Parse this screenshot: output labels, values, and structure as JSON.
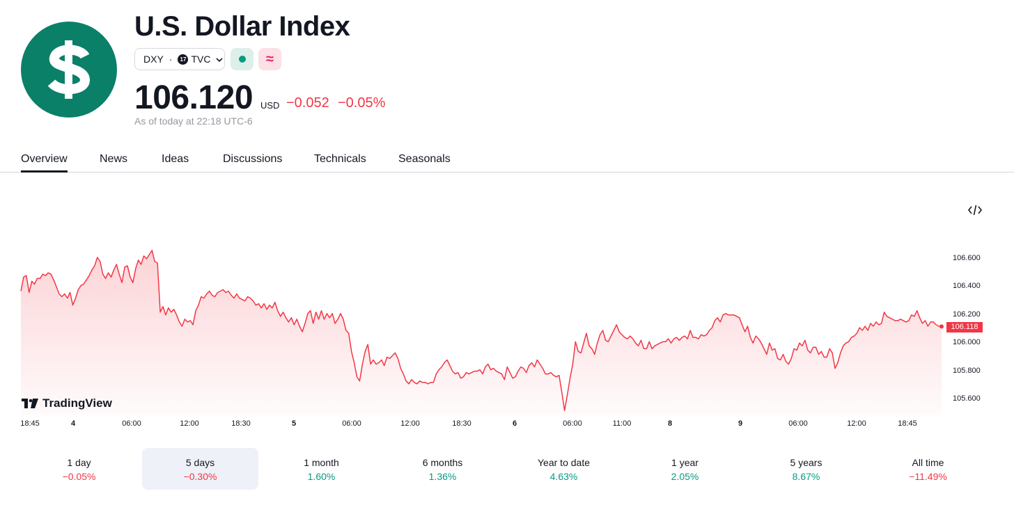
{
  "header": {
    "title": "U.S. Dollar Index",
    "symbol": "DXY",
    "separator": "·",
    "exchange": "TVC",
    "exchange_logo_text": "17",
    "logo_icon": "dollar-sign-icon",
    "status_icon": "market-open-dot-icon",
    "delay_icon": "delayed-data-icon",
    "delay_glyph": "≈",
    "price": "106.120",
    "currency": "USD",
    "change": "−0.052",
    "change_percent": "−0.05%",
    "as_of": "As of today at 22:18 UTC-6",
    "colors": {
      "brand": "#0a8068",
      "negative": "#f23645",
      "positive": "#089981"
    }
  },
  "tabs": [
    {
      "label": "Overview",
      "active": true
    },
    {
      "label": "News"
    },
    {
      "label": "Ideas"
    },
    {
      "label": "Discussions"
    },
    {
      "label": "Technicals"
    },
    {
      "label": "Seasonals"
    }
  ],
  "chart": {
    "watermark": "TradingView",
    "embed_icon": "code-embed-icon",
    "last_value_label": "106.118"
  },
  "chart_data": {
    "type": "area",
    "y_ticks": [
      "106.600",
      "106.400",
      "106.200",
      "106.000",
      "105.800",
      "105.600"
    ],
    "ylim": [
      105.5,
      106.72
    ],
    "x_ticks": [
      "18:45",
      "4",
      "06:00",
      "12:00",
      "18:30",
      "5",
      "06:00",
      "12:00",
      "18:30",
      "6",
      "06:00",
      "11:00",
      "8",
      "9",
      "06:00",
      "12:00",
      "18:45"
    ],
    "bold_ticks": [
      "4",
      "5",
      "6",
      "8",
      "9"
    ],
    "line_color": "#f23645",
    "last_value": 106.118,
    "series": [
      {
        "values": [
          106.37,
          106.47,
          106.48,
          106.36,
          106.44,
          106.42,
          106.46,
          106.46,
          106.49,
          106.48,
          106.5,
          106.49,
          106.45,
          106.4,
          106.35,
          106.33,
          106.35,
          106.32,
          106.36,
          106.27,
          106.32,
          106.38,
          106.41,
          106.42,
          106.45,
          106.48,
          106.52,
          106.55,
          106.61,
          106.58,
          106.49,
          106.46,
          106.5,
          106.47,
          106.52,
          106.56,
          106.49,
          106.43,
          106.54,
          106.55,
          106.47,
          106.43,
          106.53,
          106.59,
          106.56,
          106.62,
          106.6,
          106.63,
          106.66,
          106.58,
          106.57,
          106.22,
          106.26,
          106.2,
          106.25,
          106.22,
          106.24,
          106.2,
          106.15,
          106.12,
          106.17,
          106.15,
          106.16,
          106.13,
          106.23,
          106.27,
          106.33,
          106.32,
          106.35,
          106.37,
          106.34,
          106.33,
          106.36,
          106.37,
          106.38,
          106.36,
          106.37,
          106.34,
          106.32,
          106.35,
          106.32,
          106.31,
          106.3,
          106.33,
          106.32,
          106.3,
          106.27,
          106.28,
          106.25,
          106.28,
          106.24,
          106.27,
          106.25,
          106.29,
          106.23,
          106.19,
          106.22,
          106.18,
          106.15,
          106.18,
          106.13,
          106.17,
          106.12,
          106.08,
          106.14,
          106.21,
          106.23,
          106.14,
          106.22,
          106.17,
          106.23,
          106.17,
          106.21,
          106.18,
          106.21,
          106.14,
          106.17,
          106.21,
          106.17,
          106.09,
          106.07,
          105.94,
          105.86,
          105.76,
          105.73,
          105.85,
          105.94,
          105.99,
          105.85,
          105.88,
          105.85,
          105.86,
          105.88,
          105.84,
          105.9,
          105.89,
          105.91,
          105.93,
          105.89,
          105.82,
          105.78,
          105.73,
          105.71,
          105.74,
          105.72,
          105.71,
          105.73,
          105.72,
          105.72,
          105.71,
          105.72,
          105.72,
          105.78,
          105.81,
          105.83,
          105.86,
          105.88,
          105.84,
          105.8,
          105.78,
          105.79,
          105.75,
          105.76,
          105.79,
          105.78,
          105.79,
          105.8,
          105.8,
          105.81,
          105.78,
          105.83,
          105.85,
          105.81,
          105.82,
          105.8,
          105.79,
          105.78,
          105.74,
          105.83,
          105.79,
          105.75,
          105.76,
          105.8,
          105.83,
          105.82,
          105.79,
          105.84,
          105.86,
          105.83,
          105.88,
          105.85,
          105.82,
          105.78,
          105.78,
          105.79,
          105.77,
          105.76,
          105.77,
          105.65,
          105.52,
          105.63,
          105.75,
          105.85,
          106.01,
          105.94,
          105.93,
          106.0,
          106.07,
          105.98,
          105.96,
          105.92,
          106.0,
          106.06,
          106.09,
          106.02,
          106.01,
          106.05,
          106.09,
          106.13,
          106.08,
          106.06,
          106.04,
          106.03,
          106.05,
          106.03,
          106.0,
          105.98,
          106.02,
          105.96,
          105.96,
          106.01,
          105.96,
          105.98,
          105.99,
          106.0,
          106.01,
          106.01,
          106.03,
          106.0,
          106.03,
          106.04,
          106.02,
          106.04,
          106.05,
          106.03,
          106.09,
          106.04,
          106.04,
          106.03,
          106.06,
          106.05,
          106.06,
          106.09,
          106.11,
          106.16,
          106.18,
          106.15,
          106.2,
          106.21,
          106.2,
          106.2,
          106.2,
          106.19,
          106.18,
          106.13,
          106.08,
          106.12,
          106.04,
          106.0,
          106.05,
          106.03,
          106.0,
          105.96,
          105.92,
          106.0,
          105.95,
          105.96,
          105.89,
          105.88,
          105.92,
          105.87,
          105.85,
          105.89,
          105.96,
          105.95,
          106.0,
          105.98,
          106.02,
          105.95,
          105.93,
          105.97,
          105.97,
          105.92,
          105.94,
          105.9,
          105.9,
          105.96,
          105.93,
          105.82,
          105.86,
          105.93,
          105.98,
          106.0,
          106.01,
          106.04,
          106.05,
          106.07,
          106.11,
          106.09,
          106.12,
          106.09,
          106.14,
          106.12,
          106.15,
          106.13,
          106.14,
          106.22,
          106.19,
          106.18,
          106.17,
          106.16,
          106.16,
          106.17,
          106.16,
          106.15,
          106.16,
          106.2,
          106.19,
          106.23,
          106.18,
          106.14,
          106.16,
          106.12,
          106.15,
          106.15,
          106.13,
          106.12,
          106.118
        ]
      }
    ]
  },
  "performance": [
    {
      "label": "1 day",
      "value": "−0.05%",
      "trend": "neg"
    },
    {
      "label": "5 days",
      "value": "−0.30%",
      "trend": "neg",
      "selected": true
    },
    {
      "label": "1 month",
      "value": "1.60%",
      "trend": "pos"
    },
    {
      "label": "6 months",
      "value": "1.36%",
      "trend": "pos"
    },
    {
      "label": "Year to date",
      "value": "4.63%",
      "trend": "pos"
    },
    {
      "label": "1 year",
      "value": "2.05%",
      "trend": "pos"
    },
    {
      "label": "5 years",
      "value": "8.67%",
      "trend": "pos"
    },
    {
      "label": "All time",
      "value": "−11.49%",
      "trend": "neg"
    }
  ]
}
